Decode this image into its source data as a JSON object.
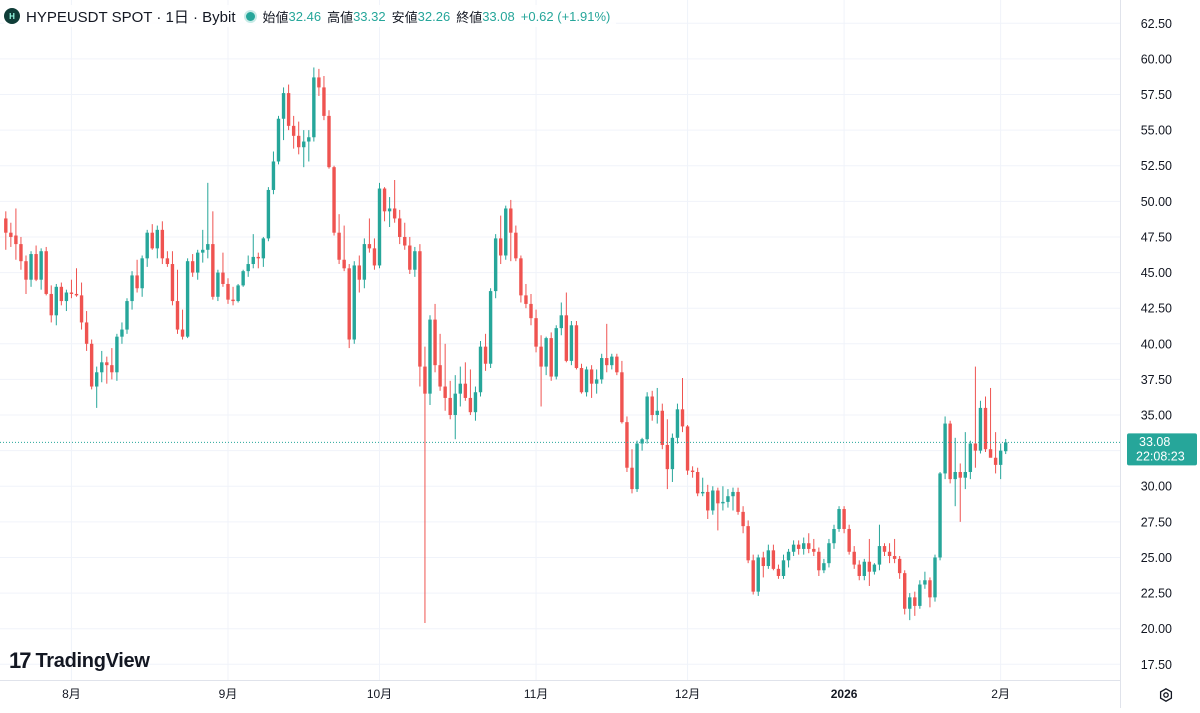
{
  "header": {
    "badge_text": "H",
    "symbol_title": "HYPEUSDT SPOT · 1日 · Bybit",
    "open_label": "始値",
    "open_value": "32.46",
    "high_label": "高値",
    "high_value": "33.32",
    "low_label": "安値",
    "low_value": "32.26",
    "close_label": "終値",
    "close_value": "33.08",
    "change_value": "+0.62 (+1.91%)"
  },
  "price_badge": {
    "price": "33.08",
    "countdown": "22:08:23"
  },
  "watermark": {
    "mark": "17",
    "text": "TradingView"
  },
  "colors": {
    "up": "#26a69a",
    "down": "#ef5350",
    "grid": "#f0f3fa",
    "axis_text": "#131722"
  },
  "icons": {
    "settings": "gear-icon",
    "status": "status-dot-icon"
  },
  "chart_data": {
    "type": "candlestick",
    "title": "HYPEUSDT SPOT · 1日 · Bybit",
    "ylim": [
      15.5,
      64
    ],
    "y_ticks": [
      "17.50",
      "20.00",
      "22.50",
      "25.00",
      "27.50",
      "30.00",
      "32.50",
      "35.00",
      "37.50",
      "40.00",
      "42.50",
      "45.00",
      "47.50",
      "50.00",
      "52.50",
      "55.00",
      "57.50",
      "60.00",
      "62.50"
    ],
    "x_ticks": [
      {
        "label": "8月",
        "day": 13
      },
      {
        "label": "9月",
        "day": 44
      },
      {
        "label": "10月",
        "day": 74
      },
      {
        "label": "11月",
        "day": 105
      },
      {
        "label": "12月",
        "day": 135
      },
      {
        "label": "2026",
        "day": 166,
        "bold": true
      },
      {
        "label": "2月",
        "day": 197
      }
    ],
    "current_price": 33.08,
    "candles": [
      [
        48.8,
        49.3,
        46.6,
        47.8
      ],
      [
        47.8,
        48.5,
        46.8,
        47.5
      ],
      [
        47.6,
        49.5,
        45.9,
        47.0
      ],
      [
        47.0,
        47.5,
        45.2,
        45.8
      ],
      [
        45.8,
        46.2,
        43.5,
        44.5
      ],
      [
        44.5,
        46.5,
        44.0,
        46.3
      ],
      [
        46.3,
        46.9,
        44.4,
        44.5
      ],
      [
        44.5,
        46.7,
        43.8,
        46.5
      ],
      [
        46.5,
        46.8,
        43.4,
        43.5
      ],
      [
        43.5,
        44.1,
        41.5,
        42.0
      ],
      [
        42.0,
        44.2,
        41.3,
        44.0
      ],
      [
        44.0,
        44.3,
        42.7,
        43.0
      ],
      [
        43.0,
        43.8,
        42.3,
        43.6
      ],
      [
        43.6,
        44.5,
        43.2,
        43.5
      ],
      [
        43.5,
        45.3,
        43.3,
        43.4
      ],
      [
        43.4,
        44.3,
        41.0,
        41.5
      ],
      [
        41.5,
        42.3,
        39.5,
        40.0
      ],
      [
        40.0,
        40.3,
        36.8,
        37.0
      ],
      [
        37.0,
        38.4,
        35.5,
        38.0
      ],
      [
        38.0,
        39.5,
        37.3,
        38.7
      ],
      [
        38.7,
        39.1,
        37.2,
        38.5
      ],
      [
        38.5,
        39.7,
        37.5,
        38.0
      ],
      [
        38.0,
        40.7,
        37.4,
        40.5
      ],
      [
        40.5,
        41.5,
        40.0,
        41.0
      ],
      [
        41.0,
        43.2,
        40.7,
        43.0
      ],
      [
        43.0,
        45.1,
        42.4,
        44.8
      ],
      [
        44.8,
        45.9,
        43.6,
        43.9
      ],
      [
        43.9,
        46.2,
        43.3,
        46.0
      ],
      [
        46.0,
        48.0,
        45.4,
        47.8
      ],
      [
        47.8,
        48.4,
        46.6,
        46.7
      ],
      [
        46.7,
        48.3,
        46.0,
        48.0
      ],
      [
        48.0,
        48.6,
        45.6,
        46.0
      ],
      [
        46.0,
        46.5,
        45.4,
        45.6
      ],
      [
        45.6,
        46.5,
        42.7,
        43.0
      ],
      [
        43.0,
        45.2,
        40.7,
        41.0
      ],
      [
        41.0,
        42.4,
        40.3,
        40.5
      ],
      [
        40.5,
        46.0,
        40.4,
        45.8
      ],
      [
        45.8,
        46.3,
        44.7,
        45.0
      ],
      [
        45.0,
        46.6,
        44.5,
        46.4
      ],
      [
        46.4,
        48.0,
        45.7,
        46.6
      ],
      [
        46.6,
        51.3,
        46.0,
        47.0
      ],
      [
        47.0,
        49.3,
        43.1,
        43.3
      ],
      [
        43.3,
        45.2,
        43.0,
        45.0
      ],
      [
        45.0,
        46.4,
        44.0,
        44.2
      ],
      [
        44.2,
        44.6,
        42.8,
        43.1
      ],
      [
        43.1,
        44.0,
        42.7,
        43.0
      ],
      [
        43.0,
        44.2,
        42.9,
        44.1
      ],
      [
        44.1,
        45.2,
        44.0,
        45.1
      ],
      [
        45.1,
        46.2,
        44.7,
        45.6
      ],
      [
        45.6,
        47.7,
        45.3,
        46.1
      ],
      [
        46.1,
        46.4,
        45.3,
        46.0
      ],
      [
        46.0,
        47.5,
        45.4,
        47.4
      ],
      [
        47.4,
        51.0,
        47.2,
        50.8
      ],
      [
        50.8,
        53.5,
        50.5,
        52.8
      ],
      [
        52.8,
        56.0,
        52.6,
        55.8
      ],
      [
        55.8,
        58.0,
        54.3,
        57.6
      ],
      [
        57.6,
        58.2,
        55.0,
        55.3
      ],
      [
        55.3,
        56.0,
        53.7,
        54.6
      ],
      [
        54.6,
        55.6,
        53.3,
        53.8
      ],
      [
        53.8,
        55.0,
        52.4,
        54.2
      ],
      [
        54.2,
        55.0,
        52.8,
        54.5
      ],
      [
        54.5,
        59.4,
        54.2,
        58.7
      ],
      [
        58.7,
        59.3,
        57.4,
        58.0
      ],
      [
        58.0,
        58.8,
        55.7,
        56.0
      ],
      [
        56.0,
        56.4,
        52.3,
        52.4
      ],
      [
        52.4,
        52.5,
        47.6,
        47.8
      ],
      [
        47.8,
        49.1,
        45.6,
        45.9
      ],
      [
        45.9,
        48.3,
        45.1,
        45.3
      ],
      [
        45.3,
        45.6,
        39.7,
        40.3
      ],
      [
        40.3,
        45.8,
        40.0,
        45.5
      ],
      [
        45.5,
        46.2,
        43.6,
        44.5
      ],
      [
        44.5,
        47.4,
        43.9,
        47.0
      ],
      [
        47.0,
        48.8,
        46.4,
        46.7
      ],
      [
        46.7,
        47.4,
        45.2,
        45.5
      ],
      [
        45.5,
        51.3,
        45.3,
        50.9
      ],
      [
        50.9,
        51.0,
        48.6,
        49.3
      ],
      [
        49.3,
        50.3,
        48.2,
        49.5
      ],
      [
        49.5,
        51.5,
        48.5,
        48.8
      ],
      [
        48.8,
        49.4,
        47.0,
        47.5
      ],
      [
        47.5,
        48.5,
        46.6,
        46.9
      ],
      [
        46.9,
        47.5,
        44.9,
        45.2
      ],
      [
        45.2,
        46.8,
        44.7,
        46.5
      ],
      [
        46.5,
        47.0,
        37.0,
        38.4
      ],
      [
        38.4,
        39.8,
        20.4,
        36.5
      ],
      [
        36.5,
        42.0,
        35.7,
        41.7
      ],
      [
        41.7,
        42.8,
        38.0,
        38.5
      ],
      [
        38.5,
        40.7,
        36.7,
        37.0
      ],
      [
        37.0,
        40.0,
        35.3,
        36.2
      ],
      [
        36.2,
        37.4,
        34.7,
        35.0
      ],
      [
        35.0,
        37.8,
        33.3,
        36.5
      ],
      [
        36.5,
        38.4,
        35.6,
        37.2
      ],
      [
        37.2,
        38.7,
        36.0,
        36.2
      ],
      [
        36.2,
        38.2,
        35.0,
        35.2
      ],
      [
        35.2,
        37.0,
        34.6,
        36.6
      ],
      [
        36.6,
        40.2,
        36.3,
        39.8
      ],
      [
        39.8,
        40.7,
        38.1,
        38.6
      ],
      [
        38.6,
        43.9,
        38.3,
        43.7
      ],
      [
        43.7,
        47.7,
        43.2,
        47.4
      ],
      [
        47.4,
        49.0,
        45.6,
        46.2
      ],
      [
        46.2,
        49.7,
        45.9,
        49.5
      ],
      [
        49.5,
        50.1,
        45.8,
        47.8
      ],
      [
        47.8,
        48.3,
        45.8,
        46.0
      ],
      [
        46.0,
        46.2,
        42.9,
        43.4
      ],
      [
        43.4,
        44.2,
        42.5,
        42.8
      ],
      [
        42.8,
        43.5,
        41.3,
        41.8
      ],
      [
        41.8,
        42.4,
        39.4,
        39.8
      ],
      [
        39.8,
        40.6,
        35.6,
        38.4
      ],
      [
        38.4,
        40.5,
        37.8,
        40.4
      ],
      [
        40.4,
        40.8,
        37.4,
        37.7
      ],
      [
        37.7,
        41.3,
        37.5,
        41.1
      ],
      [
        41.1,
        42.9,
        40.6,
        42.0
      ],
      [
        42.0,
        43.6,
        38.7,
        38.8
      ],
      [
        38.8,
        41.6,
        38.5,
        41.3
      ],
      [
        41.3,
        41.6,
        38.2,
        38.3
      ],
      [
        38.3,
        38.6,
        36.5,
        36.6
      ],
      [
        36.6,
        38.4,
        36.3,
        38.2
      ],
      [
        38.2,
        38.5,
        36.2,
        37.2
      ],
      [
        37.2,
        38.2,
        36.5,
        37.5
      ],
      [
        37.5,
        39.3,
        37.2,
        39.0
      ],
      [
        39.0,
        41.4,
        38.0,
        38.5
      ],
      [
        38.5,
        39.3,
        38.2,
        39.1
      ],
      [
        39.1,
        39.3,
        37.8,
        38.0
      ],
      [
        38.0,
        38.8,
        34.4,
        34.5
      ],
      [
        34.5,
        34.9,
        31.0,
        31.3
      ],
      [
        31.3,
        32.6,
        29.5,
        29.8
      ],
      [
        29.8,
        33.2,
        29.6,
        33.0
      ],
      [
        33.0,
        33.4,
        32.5,
        33.3
      ],
      [
        33.3,
        36.6,
        33.0,
        36.3
      ],
      [
        36.3,
        36.7,
        34.6,
        35.0
      ],
      [
        35.0,
        36.9,
        34.4,
        35.3
      ],
      [
        35.3,
        35.8,
        32.6,
        32.9
      ],
      [
        32.9,
        34.7,
        29.8,
        31.2
      ],
      [
        31.2,
        33.7,
        30.3,
        33.4
      ],
      [
        33.4,
        35.8,
        33.0,
        35.4
      ],
      [
        35.4,
        37.6,
        33.8,
        34.2
      ],
      [
        34.2,
        34.3,
        30.8,
        31.1
      ],
      [
        31.1,
        31.4,
        30.6,
        31.0
      ],
      [
        31.0,
        31.3,
        29.3,
        29.5
      ],
      [
        29.5,
        30.6,
        29.3,
        29.6
      ],
      [
        29.6,
        30.1,
        27.7,
        28.3
      ],
      [
        28.3,
        30.0,
        28.0,
        29.7
      ],
      [
        29.7,
        29.9,
        26.9,
        28.8
      ],
      [
        28.8,
        30.0,
        28.3,
        28.9
      ],
      [
        28.9,
        29.8,
        28.5,
        29.3
      ],
      [
        29.3,
        29.9,
        28.3,
        29.6
      ],
      [
        29.6,
        29.9,
        28.0,
        28.2
      ],
      [
        28.2,
        28.6,
        26.7,
        27.2
      ],
      [
        27.2,
        27.6,
        24.6,
        24.8
      ],
      [
        24.8,
        25.2,
        22.4,
        22.6
      ],
      [
        22.6,
        25.2,
        22.3,
        25.0
      ],
      [
        25.0,
        25.4,
        23.6,
        24.4
      ],
      [
        24.4,
        25.9,
        24.2,
        25.5
      ],
      [
        25.5,
        25.9,
        24.1,
        24.2
      ],
      [
        24.2,
        24.5,
        23.5,
        23.7
      ],
      [
        23.7,
        25.2,
        23.5,
        24.8
      ],
      [
        24.8,
        25.6,
        24.3,
        25.4
      ],
      [
        25.4,
        26.2,
        25.1,
        25.9
      ],
      [
        25.9,
        26.2,
        25.2,
        25.6
      ],
      [
        25.6,
        26.4,
        25.2,
        26.0
      ],
      [
        26.0,
        26.7,
        25.3,
        25.6
      ],
      [
        25.6,
        26.3,
        25.1,
        25.4
      ],
      [
        25.4,
        25.7,
        23.7,
        24.1
      ],
      [
        24.1,
        24.9,
        23.9,
        24.6
      ],
      [
        24.6,
        26.3,
        24.3,
        26.0
      ],
      [
        26.0,
        27.3,
        25.6,
        27.0
      ],
      [
        27.0,
        28.6,
        26.8,
        28.4
      ],
      [
        28.4,
        28.6,
        26.7,
        27.0
      ],
      [
        27.0,
        27.3,
        25.2,
        25.4
      ],
      [
        25.4,
        25.8,
        24.2,
        24.5
      ],
      [
        24.5,
        24.8,
        23.4,
        23.7
      ],
      [
        23.7,
        24.9,
        23.4,
        24.7
      ],
      [
        24.7,
        26.3,
        23.0,
        24.0
      ],
      [
        24.0,
        24.6,
        23.8,
        24.5
      ],
      [
        24.5,
        27.3,
        24.1,
        25.8
      ],
      [
        25.8,
        26.0,
        25.1,
        25.4
      ],
      [
        25.4,
        26.0,
        24.6,
        25.1
      ],
      [
        25.1,
        26.3,
        24.6,
        24.9
      ],
      [
        24.9,
        25.1,
        23.5,
        23.9
      ],
      [
        23.9,
        24.1,
        21.0,
        21.4
      ],
      [
        21.4,
        22.5,
        20.6,
        22.2
      ],
      [
        22.2,
        22.6,
        20.9,
        21.6
      ],
      [
        21.6,
        23.4,
        21.4,
        23.1
      ],
      [
        23.1,
        24.0,
        22.8,
        23.4
      ],
      [
        23.4,
        23.6,
        21.5,
        22.2
      ],
      [
        22.2,
        25.2,
        21.9,
        25.0
      ],
      [
        25.0,
        31.0,
        24.8,
        30.9
      ],
      [
        30.9,
        34.9,
        30.5,
        34.4
      ],
      [
        34.4,
        34.6,
        30.2,
        30.5
      ],
      [
        30.5,
        33.4,
        28.6,
        31.0
      ],
      [
        31.0,
        31.6,
        27.5,
        30.6
      ],
      [
        30.6,
        33.8,
        29.8,
        31.0
      ],
      [
        31.0,
        33.2,
        30.5,
        33.0
      ],
      [
        33.0,
        38.4,
        31.3,
        32.5
      ],
      [
        32.5,
        36.0,
        32.3,
        35.5
      ],
      [
        35.5,
        36.3,
        32.4,
        32.6
      ],
      [
        32.6,
        36.9,
        32.2,
        32.0
      ],
      [
        32.0,
        33.8,
        30.9,
        31.5
      ],
      [
        31.5,
        33.0,
        30.5,
        32.5
      ],
      [
        32.46,
        33.32,
        32.26,
        33.08
      ]
    ]
  }
}
